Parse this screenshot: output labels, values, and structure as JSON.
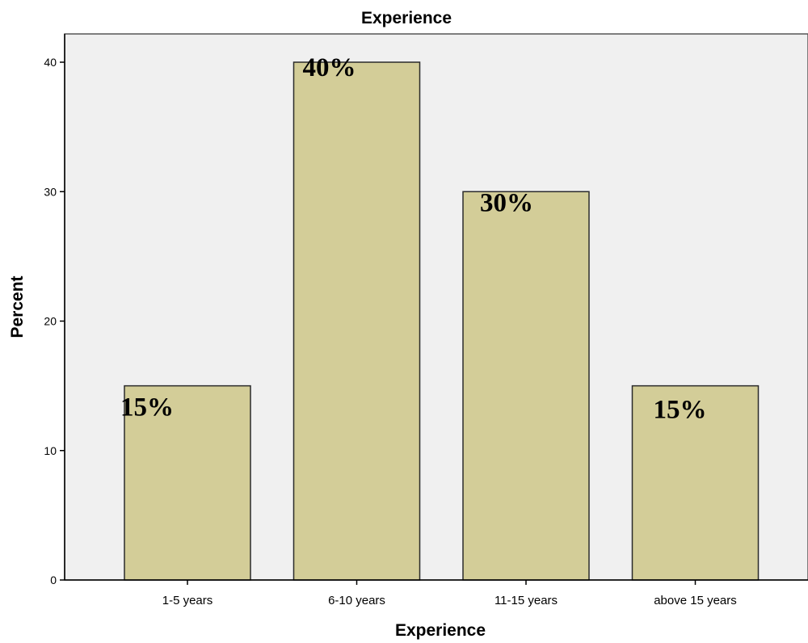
{
  "chart_data": {
    "type": "bar",
    "title": "Experience",
    "xlabel": "Experience",
    "ylabel": "Percent",
    "categories": [
      "1-5 years",
      "6-10 years",
      "11-15 years",
      "above 15 years"
    ],
    "values": [
      15,
      40,
      30,
      15
    ],
    "data_labels": [
      "15%",
      "40%",
      "30%",
      "15%"
    ],
    "ylim": [
      0,
      40
    ],
    "yticks": [
      0,
      10,
      20,
      30,
      40
    ],
    "grid": false,
    "legend": "none",
    "colors": {
      "bar_fill": "#d3cd98",
      "bar_stroke": "#2b2b2b",
      "plot_background": "#f0f0f0",
      "axis": "#000000"
    }
  }
}
